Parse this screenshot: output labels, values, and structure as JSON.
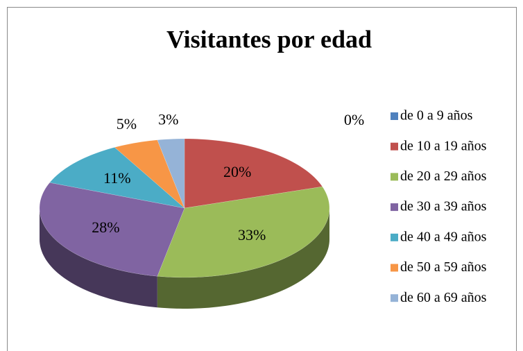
{
  "chart_data": {
    "type": "pie",
    "title": "Visitantes por edad",
    "categories": [
      "de 0 a 9 años",
      "de 10 a 19 años",
      "de 20 a 29 años",
      "de 30 a 39 años",
      "de 40 a 49 años",
      "de 50 a 59 años",
      "de 60 a 69 años"
    ],
    "values": [
      0,
      20,
      33,
      28,
      11,
      5,
      3
    ],
    "value_labels": [
      "0%",
      "20%",
      "33%",
      "28%",
      "11%",
      "5%",
      "3%"
    ],
    "colors": [
      "#4f81bd",
      "#c0504d",
      "#9bbb59",
      "#8064a2",
      "#4bacc6",
      "#f79646",
      "#95b3d7"
    ],
    "legend": "right"
  }
}
